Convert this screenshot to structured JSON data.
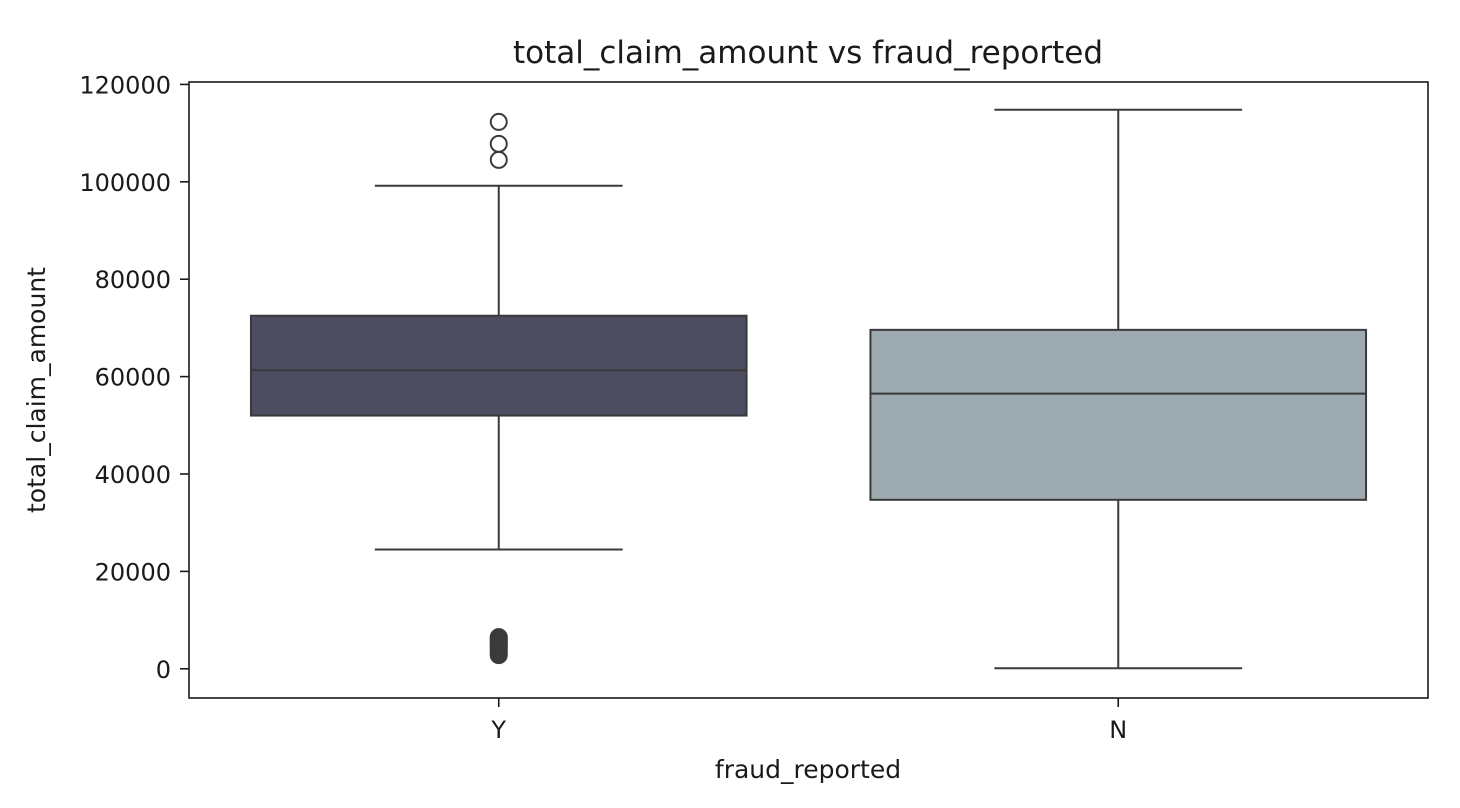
{
  "chart_data": {
    "type": "box",
    "title": "total_claim_amount vs fraud_reported",
    "xlabel": "fraud_reported",
    "ylabel": "total_claim_amount",
    "ylim": [
      -6000,
      120500
    ],
    "yticks": [
      0,
      20000,
      40000,
      60000,
      80000,
      100000,
      120000
    ],
    "ytick_labels": [
      "0",
      "20000",
      "40000",
      "60000",
      "80000",
      "100000",
      "120000"
    ],
    "grid": false,
    "legend": "none",
    "categories": [
      "Y",
      "N"
    ],
    "boxes": [
      {
        "category": "Y",
        "color": "#4d4d61",
        "whisker_low": 24500,
        "q1": 52000,
        "median": 61300,
        "q3": 72500,
        "whisker_high": 99200,
        "outliers_high": [
          104500,
          107800,
          112300
        ],
        "outliers_low": [
          2800,
          3300,
          3700,
          4100,
          4500,
          4800,
          5100,
          5400,
          5700,
          6000,
          6300,
          6500
        ]
      },
      {
        "category": "N",
        "color": "#9daab0",
        "whisker_low": 100,
        "q1": 34700,
        "median": 56500,
        "q3": 69600,
        "whisker_high": 114800,
        "outliers_high": [],
        "outliers_low": []
      }
    ]
  }
}
